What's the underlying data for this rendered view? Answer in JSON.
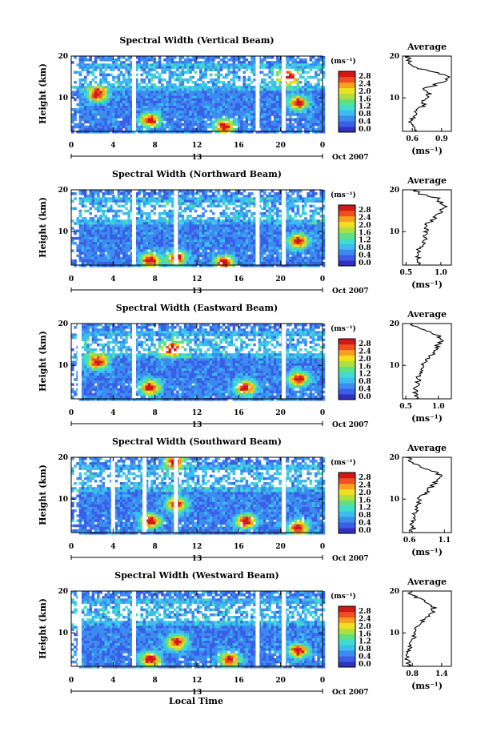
{
  "figure": {
    "xlabel": "Local Time",
    "x_ticks": [
      "0",
      "4",
      "8",
      "12",
      "16",
      "20",
      "0"
    ],
    "date_day": "13",
    "date_label": "Oct 2007",
    "ylabel": "Height (km)",
    "y_ticks": [
      "20",
      "10"
    ],
    "unit_label": "(ms⁻¹)",
    "colorbar_ticks": [
      "2.8",
      "2.4",
      "2.0",
      "1.6",
      "1.2",
      "0.8",
      "0.4",
      "0.0"
    ],
    "colors": [
      "#3030c0",
      "#3a5ee8",
      "#3c8cf0",
      "#3cbcf0",
      "#40dcd0",
      "#60e080",
      "#b0e040",
      "#f0e020",
      "#f8a020",
      "#f05020",
      "#d01818"
    ],
    "average_title": "Average",
    "average_y_ticks": [
      "20",
      "10"
    ]
  },
  "chart_data": [
    {
      "type": "heatmap",
      "title": "Spectral Width (Vertical Beam)",
      "xlabel": "Local Time",
      "ylabel": "Height (km)",
      "xlim": [
        0,
        24
      ],
      "ylim": [
        2,
        20
      ],
      "colorbar": {
        "label": "(ms⁻¹)",
        "range": [
          0.0,
          2.8
        ]
      },
      "gaps_hours": [
        6.0,
        17.8,
        20.3
      ],
      "hotspots": [
        {
          "x": 7.5,
          "y": 5
        },
        {
          "x": 2.5,
          "y": 11
        },
        {
          "x": 20.5,
          "y": 15
        },
        {
          "x": 21.5,
          "y": 9
        },
        {
          "x": 14.5,
          "y": 3.5
        }
      ],
      "average_profile": {
        "title": "Average",
        "xlabel": "(ms⁻¹)",
        "x_ticks": [
          "0.6",
          "0.9"
        ],
        "xlim": [
          0.5,
          1.0
        ],
        "height_km": [
          2,
          4,
          6,
          8,
          10,
          11,
          12,
          13,
          14,
          15,
          16,
          17,
          18,
          19,
          20
        ],
        "values": [
          0.63,
          0.58,
          0.62,
          0.7,
          0.74,
          0.78,
          0.7,
          0.82,
          0.92,
          0.97,
          0.85,
          0.68,
          0.58,
          0.57,
          0.55
        ]
      }
    },
    {
      "type": "heatmap",
      "title": "Spectral Width (Northward Beam)",
      "xlabel": "Local Time",
      "ylabel": "Height (km)",
      "xlim": [
        0,
        24
      ],
      "ylim": [
        2,
        20
      ],
      "colorbar": {
        "label": "(ms⁻¹)",
        "range": [
          0.0,
          2.8
        ]
      },
      "gaps_hours": [
        6.0,
        10.0,
        17.8,
        20.3
      ],
      "hotspots": [
        {
          "x": 7.5,
          "y": 3.5
        },
        {
          "x": 14.5,
          "y": 3.0
        },
        {
          "x": 21.5,
          "y": 8
        },
        {
          "x": 10.0,
          "y": 4
        }
      ],
      "average_profile": {
        "title": "Average",
        "xlabel": "(ms⁻¹)",
        "x_ticks": [
          "0.5",
          "1.0"
        ],
        "xlim": [
          0.45,
          1.15
        ],
        "height_km": [
          2,
          4,
          6,
          8,
          10,
          11,
          12,
          13,
          14,
          15,
          16,
          17,
          18,
          19,
          20
        ],
        "values": [
          0.68,
          0.66,
          0.7,
          0.76,
          0.78,
          0.78,
          0.82,
          0.88,
          0.95,
          1.0,
          1.05,
          1.0,
          0.95,
          0.7,
          0.62
        ]
      }
    },
    {
      "type": "heatmap",
      "title": "Spectral Width (Eastward Beam)",
      "xlabel": "Local Time",
      "ylabel": "Height (km)",
      "xlim": [
        0,
        24
      ],
      "ylim": [
        2,
        20
      ],
      "colorbar": {
        "label": "(ms⁻¹)",
        "range": [
          0.0,
          2.8
        ]
      },
      "gaps_hours": [
        0.8,
        6.0,
        20.3
      ],
      "hotspots": [
        {
          "x": 7.5,
          "y": 5
        },
        {
          "x": 16.5,
          "y": 5
        },
        {
          "x": 9.5,
          "y": 14
        },
        {
          "x": 21.5,
          "y": 7
        },
        {
          "x": 2.5,
          "y": 11
        }
      ],
      "average_profile": {
        "title": "Average",
        "xlabel": "(ms⁻¹)",
        "x_ticks": [
          "0.5",
          "1.0"
        ],
        "xlim": [
          0.45,
          1.2
        ],
        "height_km": [
          2,
          4,
          6,
          8,
          10,
          11,
          12,
          13,
          14,
          15,
          16,
          17,
          18,
          19,
          20
        ],
        "values": [
          0.65,
          0.64,
          0.68,
          0.72,
          0.76,
          0.8,
          0.85,
          0.92,
          0.98,
          1.0,
          1.05,
          1.02,
          0.9,
          0.68,
          0.6
        ]
      }
    },
    {
      "type": "heatmap",
      "title": "Spectral Width (Southward Beam)",
      "xlabel": "Local Time",
      "ylabel": "Height (km)",
      "xlim": [
        0,
        24
      ],
      "ylim": [
        2,
        20
      ],
      "colorbar": {
        "label": "(ms⁻¹)",
        "range": [
          0.0,
          2.8
        ]
      },
      "gaps_hours": [
        4.0,
        7.0,
        10.0,
        20.3
      ],
      "hotspots": [
        {
          "x": 7.5,
          "y": 5
        },
        {
          "x": 16.5,
          "y": 5
        },
        {
          "x": 10.0,
          "y": 9
        },
        {
          "x": 21.5,
          "y": 3.5
        },
        {
          "x": 9.8,
          "y": 19
        }
      ],
      "average_profile": {
        "title": "Average",
        "xlabel": "(ms⁻¹)",
        "x_ticks": [
          "0.6",
          "1.1"
        ],
        "xlim": [
          0.5,
          1.2
        ],
        "height_km": [
          2,
          4,
          6,
          8,
          10,
          11,
          12,
          13,
          14,
          15,
          16,
          17,
          18,
          19,
          20
        ],
        "values": [
          0.66,
          0.64,
          0.66,
          0.7,
          0.74,
          0.8,
          0.86,
          0.92,
          0.98,
          1.05,
          1.02,
          0.9,
          0.75,
          0.62,
          0.58
        ]
      }
    },
    {
      "type": "heatmap",
      "title": "Spectral Width (Westward Beam)",
      "xlabel": "Local Time",
      "ylabel": "Height (km)",
      "xlim": [
        0,
        24
      ],
      "ylim": [
        2,
        20
      ],
      "colorbar": {
        "label": "(ms⁻¹)",
        "range": [
          0.0,
          2.8
        ]
      },
      "gaps_hours": [
        0.8,
        6.0,
        17.8,
        20.3
      ],
      "hotspots": [
        {
          "x": 7.5,
          "y": 4
        },
        {
          "x": 21.5,
          "y": 6
        },
        {
          "x": 10.0,
          "y": 8
        },
        {
          "x": 15.0,
          "y": 4
        }
      ],
      "average_profile": {
        "title": "Average",
        "xlabel": "(ms⁻¹)",
        "x_ticks": [
          "0.8",
          "1.4"
        ],
        "xlim": [
          0.6,
          1.6
        ],
        "height_km": [
          2,
          4,
          6,
          8,
          10,
          11,
          12,
          13,
          14,
          15,
          16,
          17,
          18,
          19,
          20
        ],
        "values": [
          0.72,
          0.7,
          0.74,
          0.8,
          0.86,
          0.9,
          0.96,
          1.02,
          1.1,
          1.2,
          1.25,
          1.15,
          0.95,
          0.8,
          0.75
        ]
      }
    }
  ]
}
